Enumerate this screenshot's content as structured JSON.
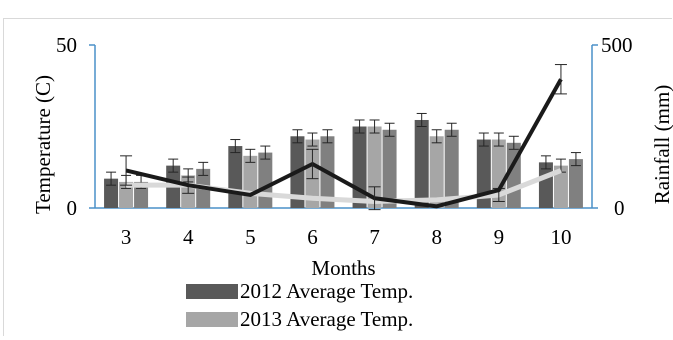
{
  "chart_data": {
    "type": "bar",
    "xlabel": "Months",
    "ylabel": "Temperature (C)",
    "y2label": "Rainfall (mm)",
    "categories": [
      "3",
      "4",
      "5",
      "6",
      "7",
      "8",
      "9",
      "10"
    ],
    "ylim": [
      0,
      50
    ],
    "y2lim": [
      0,
      500
    ],
    "yticks": [
      "0",
      "50"
    ],
    "y2ticks": [
      "0",
      "500"
    ],
    "bar_series": [
      {
        "name": "2012 Average Temp.",
        "color": "#595959",
        "values": [
          9,
          13,
          19,
          22,
          25,
          27,
          21,
          14
        ],
        "errors": [
          2,
          2,
          2,
          2,
          2,
          2,
          2,
          2
        ]
      },
      {
        "name": "",
        "color": "#a6a6a6",
        "values": [
          8,
          10,
          16,
          21,
          25,
          22,
          21,
          13
        ],
        "errors": [
          2,
          2,
          2,
          2,
          2,
          2,
          2,
          2
        ]
      },
      {
        "name": "",
        "color": "#808080",
        "values": [
          8,
          12,
          17,
          22,
          24,
          24,
          20,
          15
        ],
        "errors": [
          2,
          2,
          2,
          2,
          2,
          2,
          2,
          2
        ]
      }
    ],
    "line_series": [
      {
        "name": "",
        "color": "#1a1a1a",
        "axis": "right",
        "values": [
          115,
          70,
          40,
          135,
          30,
          5,
          55,
          395
        ],
        "errors": [
          45,
          0,
          0,
          45,
          35,
          0,
          0,
          45
        ]
      },
      {
        "name": "2013 Average Temp.",
        "color": "#d9d9d9",
        "axis": "right",
        "values": [
          70,
          70,
          45,
          30,
          20,
          25,
          40,
          115
        ],
        "errors": [
          0,
          25,
          0,
          0,
          0,
          0,
          20,
          0
        ]
      }
    ],
    "legend": [
      {
        "label": "2012 Average Temp.",
        "color": "#595959"
      },
      {
        "label": "2013 Average Temp.",
        "color": "#a6a6a6"
      }
    ]
  }
}
